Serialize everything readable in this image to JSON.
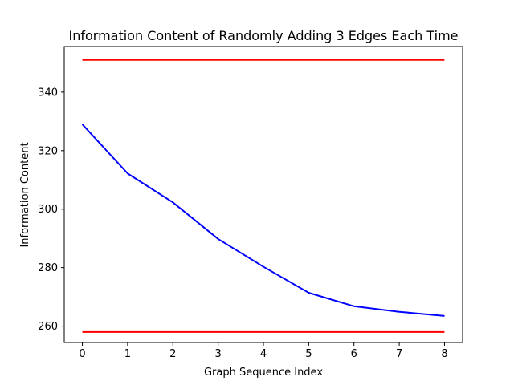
{
  "chart_data": {
    "type": "line",
    "title": "Information Content of Randomly Adding 3 Edges Each Time",
    "xlabel": "Graph Sequence Index",
    "ylabel": "Information Content",
    "xlim": [
      -0.4,
      8.4
    ],
    "ylim": [
      254.4,
      355.6
    ],
    "x_ticks": [
      0,
      1,
      2,
      3,
      4,
      5,
      6,
      7,
      8
    ],
    "y_ticks": [
      260,
      280,
      300,
      320,
      340
    ],
    "grid": false,
    "legend": "none",
    "series": [
      {
        "color": "#0000ff",
        "x": [
          0,
          1,
          2,
          3,
          4,
          5,
          6,
          7,
          8
        ],
        "y": [
          329,
          312.2,
          302.3,
          289.8,
          280.3,
          271.4,
          266.8,
          264.9,
          263.5
        ]
      },
      {
        "color": "#ff0000",
        "x": [
          0,
          8
        ],
        "y": [
          351,
          351
        ]
      },
      {
        "color": "#ff0000",
        "x": [
          0,
          8
        ],
        "y": [
          258,
          258
        ]
      }
    ]
  }
}
